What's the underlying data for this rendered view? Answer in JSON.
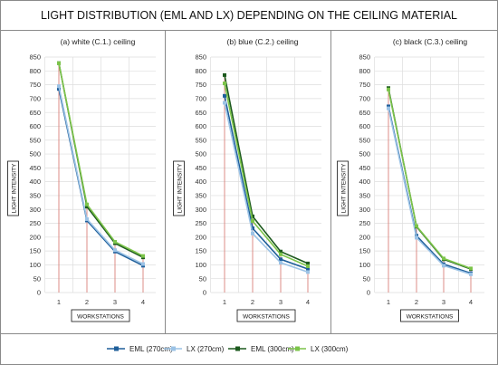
{
  "figure": {
    "title": "LIGHT DISTRIBUTION (EML AND LX) DEPENDING ON THE CEILING MATERIAL"
  },
  "legend": {
    "placement": "bottom",
    "entries": [
      "EML (270cm)",
      "LX (270cm)",
      "EML (300cm)",
      "LX (300cm)"
    ]
  },
  "colors": {
    "eml_270": "#1f5f9a",
    "lx_270": "#9cc3e6",
    "eml_300": "#1d5a1e",
    "lx_300": "#7cc44a",
    "drop_line": "#d9827a",
    "grid": "#dddddd",
    "border": "#8a8a8a"
  },
  "chart_data": [
    {
      "type": "line",
      "title": "(a) white (C.1.) ceiling",
      "xlabel": "WORKSTATIONS",
      "ylabel": "LIGHT INTENSITY",
      "x": [
        1,
        2,
        3,
        4
      ],
      "ylim": [
        0,
        850
      ],
      "ytick_step": 50,
      "grid": true,
      "series": [
        {
          "name": "EML (270cm)",
          "values": [
            735,
            260,
            148,
            97
          ]
        },
        {
          "name": "LX (270cm)",
          "values": [
            745,
            265,
            153,
            103
          ]
        },
        {
          "name": "EML (300cm)",
          "values": [
            828,
            310,
            178,
            127
          ]
        },
        {
          "name": "LX (300cm)",
          "values": [
            828,
            318,
            183,
            132
          ]
        }
      ]
    },
    {
      "type": "line",
      "title": "(b) blue (C.2.) ceiling",
      "xlabel": "WORKSTATIONS",
      "ylabel": "LIGHT INTENSITY",
      "x": [
        1,
        2,
        3,
        4
      ],
      "ylim": [
        0,
        850
      ],
      "ytick_step": 50,
      "grid": true,
      "series": [
        {
          "name": "EML (270cm)",
          "values": [
            710,
            232,
            120,
            85
          ]
        },
        {
          "name": "LX (270cm)",
          "values": [
            685,
            213,
            108,
            74
          ]
        },
        {
          "name": "EML (300cm)",
          "values": [
            785,
            275,
            148,
            105
          ]
        },
        {
          "name": "LX (300cm)",
          "values": [
            755,
            258,
            138,
            95
          ]
        }
      ]
    },
    {
      "type": "line",
      "title": "(c) black (C.3.) ceiling",
      "xlabel": "WORKSTATIONS",
      "ylabel": "LIGHT INTENSITY",
      "x": [
        1,
        2,
        3,
        4
      ],
      "ylim": [
        0,
        850
      ],
      "ytick_step": 50,
      "grid": true,
      "series": [
        {
          "name": "EML (270cm)",
          "values": [
            672,
            205,
            102,
            70
          ]
        },
        {
          "name": "LX (270cm)",
          "values": [
            665,
            198,
            97,
            66
          ]
        },
        {
          "name": "EML (300cm)",
          "values": [
            738,
            238,
            120,
            85
          ]
        },
        {
          "name": "LX (300cm)",
          "values": [
            733,
            240,
            123,
            87
          ]
        }
      ]
    }
  ]
}
